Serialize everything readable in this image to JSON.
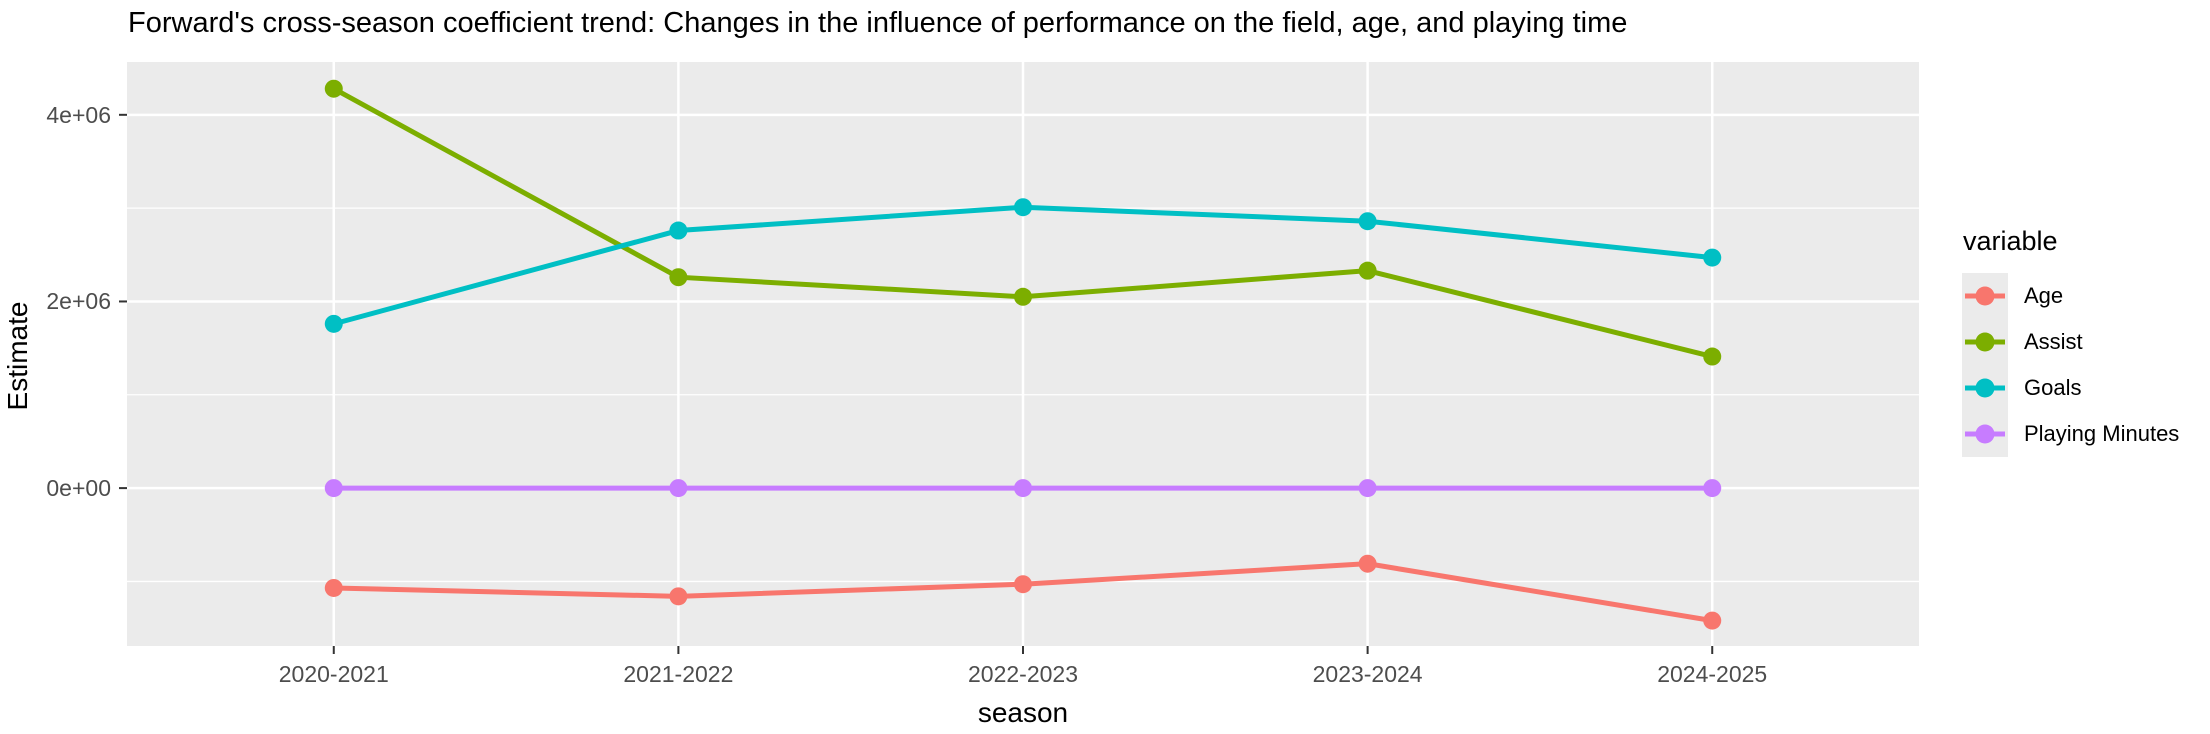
{
  "title": "Forward's cross-season coefficient trend: Changes in the influence of performance on the field, age, and playing time",
  "chart_data": {
    "type": "line",
    "title": "Forward's cross-season coefficient trend: Changes in the influence of performance on the field, age, and playing time",
    "xlabel": "season",
    "ylabel": "Estimate",
    "categories": [
      "2020-2021",
      "2021-2022",
      "2022-2023",
      "2023-2024",
      "2024-2025"
    ],
    "series": [
      {
        "name": "Age",
        "color": "#F8766D",
        "values": [
          -1070000,
          -1160000,
          -1030000,
          -810000,
          -1420000
        ]
      },
      {
        "name": "Assist",
        "color": "#7CAE00",
        "values": [
          4280000,
          2260000,
          2050000,
          2330000,
          1410000
        ]
      },
      {
        "name": "Goals",
        "color": "#00BFC4",
        "values": [
          1760000,
          2760000,
          3010000,
          2860000,
          2470000
        ]
      },
      {
        "name": "Playing Minutes",
        "color": "#C77CFF",
        "values": [
          0,
          0,
          0,
          0,
          0
        ]
      }
    ],
    "y_ticks": [
      {
        "label": "0e+00",
        "value": 0
      },
      {
        "label": "2e+06",
        "value": 2000000
      },
      {
        "label": "4e+06",
        "value": 4000000
      }
    ],
    "y_minor": [
      -1000000,
      1000000,
      3000000
    ],
    "ylim": [
      -1692000,
      4566000
    ],
    "grid": true,
    "legend_position": "right",
    "legend_title": "variable",
    "colors": {
      "panel_bg": "#EBEBEB",
      "grid": "#FFFFFF",
      "tick_mark": "#333333",
      "tick_text": "#4D4D4D",
      "title_text": "#000000"
    }
  }
}
